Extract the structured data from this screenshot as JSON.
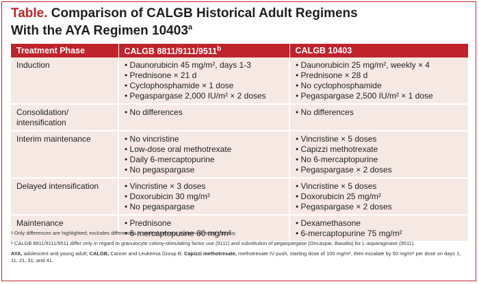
{
  "title": {
    "label": "Table.",
    "line1": "Comparison of CALGB Historical Adult Regimens",
    "line2": "With the AYA Regimen 10403",
    "superscript": "a"
  },
  "table": {
    "headers": [
      "Treatment Phase",
      "CALGB 8811/9111/9511",
      "CALGB 10403"
    ],
    "header_sup": "b",
    "rows": [
      {
        "phase": "Induction",
        "calgb_old": [
          "Daunorubicin 45 mg/m², days 1-3",
          "Prednisone × 21 d",
          "Cyclophosphamide × 1 dose",
          "Pegaspargase 2,000 IU/m² × 2 doses"
        ],
        "calgb_10403": [
          "Daunorubicin 25 mg/m², weekly × 4",
          "Prednisone × 28 d",
          "No cyclophosphamide",
          "Pegaspargase 2,500 IU/m² × 1 dose"
        ]
      },
      {
        "phase": "Consolidation/\nintensification",
        "calgb_old": [
          "No differences"
        ],
        "calgb_10403": [
          "No differences"
        ]
      },
      {
        "phase": "Interim maintenance",
        "calgb_old": [
          "No vincristine",
          "Low-dose oral methotrexate",
          "Daily 6-mercaptopurine",
          "No pegaspargase"
        ],
        "calgb_10403": [
          "Vincristine × 5 doses",
          "Capizzi methotrexate",
          "No 6-mercaptopurine",
          "Pegaspargase × 2 doses"
        ]
      },
      {
        "phase": "Delayed intensification",
        "calgb_old": [
          "Vincristine × 3 doses",
          "Doxorubicin 30 mg/m²",
          "No pegaspargase"
        ],
        "calgb_10403": [
          "Vincristine × 5 doses",
          "Doxorubicin 25 mg/m²",
          "Pegaspargase × 2 doses"
        ]
      },
      {
        "phase": "Maintenance",
        "calgb_old": [
          "Prednisone",
          "6-mercaptopurine 60 mg/m²"
        ],
        "calgb_10403": [
          "Dexamethasone",
          "6-mercaptopurine 75 mg/m²"
        ]
      }
    ]
  },
  "notes": {
    "a": "ᵃ Only differences are highlighted; excludes differences in central nervous system–directed therapy.",
    "b": "ᵇ CALGB 8811/9111/9511 differ only in regard to granulocyte colony-stimulating factor use (9111) and substitution of pegaspargase (Oncaspar, Baxalta) for L-asparaginase (9511).",
    "abbrev_aya_term": "AYA,",
    "abbrev_aya_def": " adolescent and young adult; ",
    "abbrev_calgb_term": "CALGB,",
    "abbrev_calgb_def": " Cancer and Leukemia Group B; ",
    "abbrev_capizzi_term": "Capizzi methotrexate,",
    "abbrev_capizzi_def": " methotrexate IV push, starting dose of 100 mg/m², then escalate by 50 mg/m² per dose on days 1, 11, 21, 31, and 41."
  },
  "colors": {
    "accent": "#c0232b",
    "row_background": "#f6e9e4"
  }
}
